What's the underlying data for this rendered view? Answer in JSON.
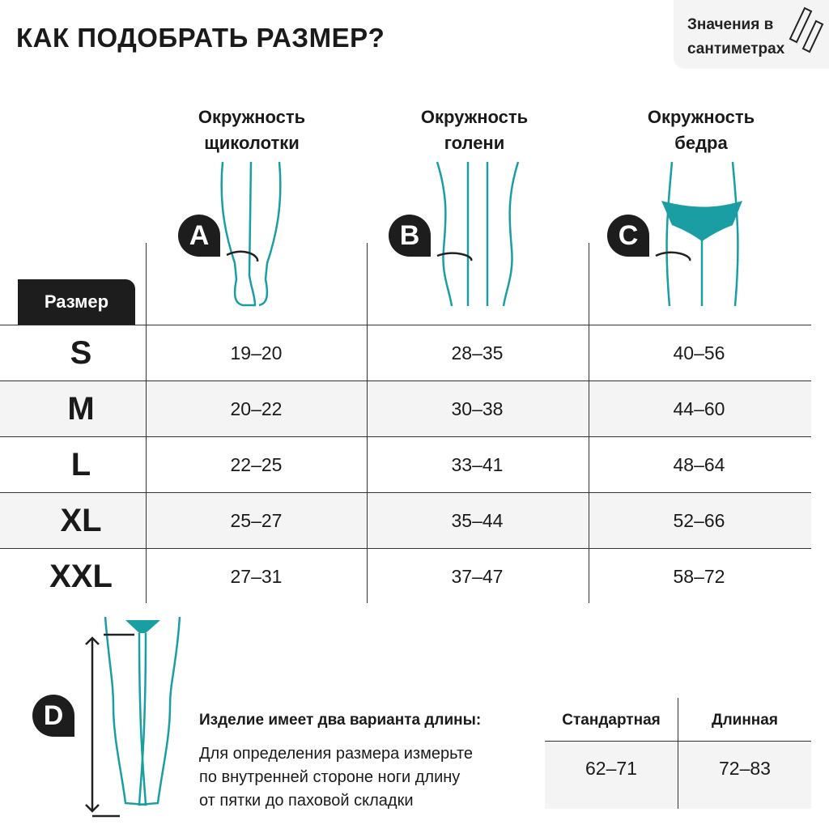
{
  "title": "КАК ПОДОБРАТЬ РАЗМЕР?",
  "units": {
    "line1": "Значения в",
    "line2": "сантиметрах",
    "icon": "ruler-icon"
  },
  "columns": [
    {
      "badge": "A",
      "line1": "Окружность",
      "line2": "щиколотки"
    },
    {
      "badge": "B",
      "line1": "Окружность",
      "line2": "голени"
    },
    {
      "badge": "C",
      "line1": "Окружность",
      "line2": "бедра"
    }
  ],
  "size_header": "Размер",
  "rows": [
    {
      "size": "S",
      "values": [
        "19–20",
        "28–35",
        "40–56"
      ]
    },
    {
      "size": "M",
      "values": [
        "20–22",
        "30–38",
        "44–60"
      ]
    },
    {
      "size": "L",
      "values": [
        "22–25",
        "33–41",
        "48–64"
      ]
    },
    {
      "size": "XL",
      "values": [
        "25–27",
        "35–44",
        "52–66"
      ]
    },
    {
      "size": "XXL",
      "values": [
        "27–31",
        "37–47",
        "58–72"
      ]
    }
  ],
  "length": {
    "badge": "D",
    "heading": "Изделие имеет два варианта длины:",
    "lines": [
      "Для определения размера измерьте",
      "по внутренней стороне ноги длину",
      "от пятки до паховой складки"
    ],
    "headers": [
      "Стандартная",
      "Длинная"
    ],
    "values": [
      "62–71",
      "72–83"
    ]
  },
  "colors": {
    "accent": "#1a9ea4",
    "dark": "#1d1d1d",
    "row_alt": "#f4f4f4"
  }
}
